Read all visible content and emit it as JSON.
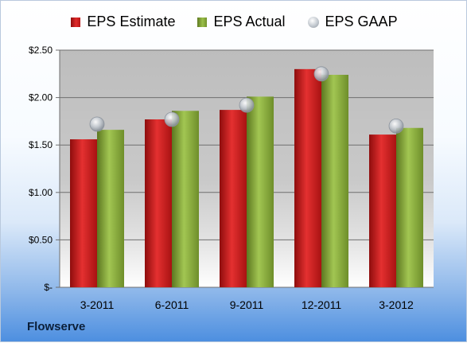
{
  "company": "Flowserve",
  "chart_data": {
    "type": "bar",
    "categories": [
      "3-2011",
      "6-2011",
      "9-2011",
      "12-2011",
      "3-2012"
    ],
    "series": [
      {
        "name": "EPS Estimate",
        "type": "bar",
        "color": "#c41e1e",
        "values": [
          1.56,
          1.77,
          1.87,
          2.3,
          1.61
        ]
      },
      {
        "name": "EPS Actual",
        "type": "bar",
        "color": "#8aad3c",
        "values": [
          1.66,
          1.86,
          2.01,
          2.24,
          1.68
        ]
      },
      {
        "name": "EPS GAAP",
        "type": "scatter",
        "color": "#b8bec6",
        "values": [
          1.72,
          1.77,
          1.92,
          2.25,
          1.7
        ]
      }
    ],
    "ylim": [
      0,
      2.5
    ],
    "yticks": [
      0,
      0.5,
      1.0,
      1.5,
      2.0,
      2.5
    ],
    "ytick_labels": [
      "$-",
      "$0.50",
      "$1.00",
      "$1.50",
      "$2.00",
      "$2.50"
    ],
    "grid": true,
    "legend": "top"
  }
}
